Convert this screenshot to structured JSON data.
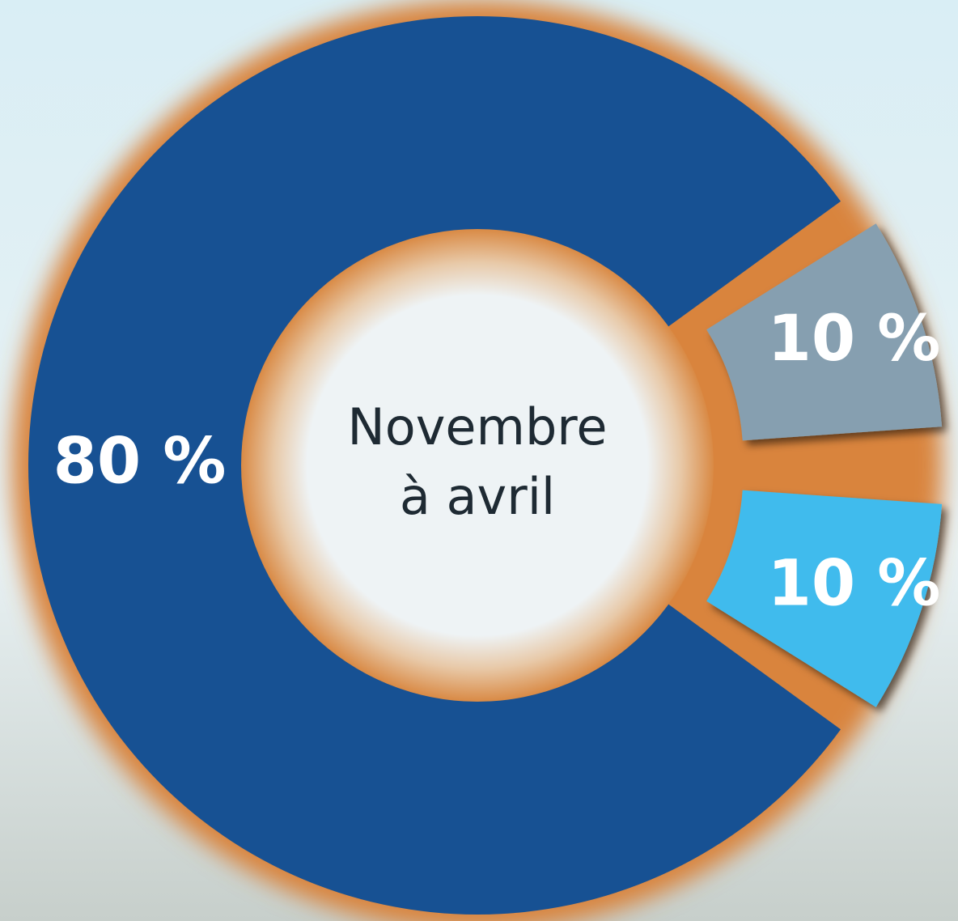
{
  "chart_data": {
    "type": "donut",
    "center_label": [
      "Novembre",
      "à avril"
    ],
    "values": [
      80,
      10,
      10
    ],
    "value_labels": [
      "80 %",
      "10 %",
      "10 %"
    ],
    "colors": [
      "#175193",
      "#869fb0",
      "#41bbed"
    ]
  }
}
